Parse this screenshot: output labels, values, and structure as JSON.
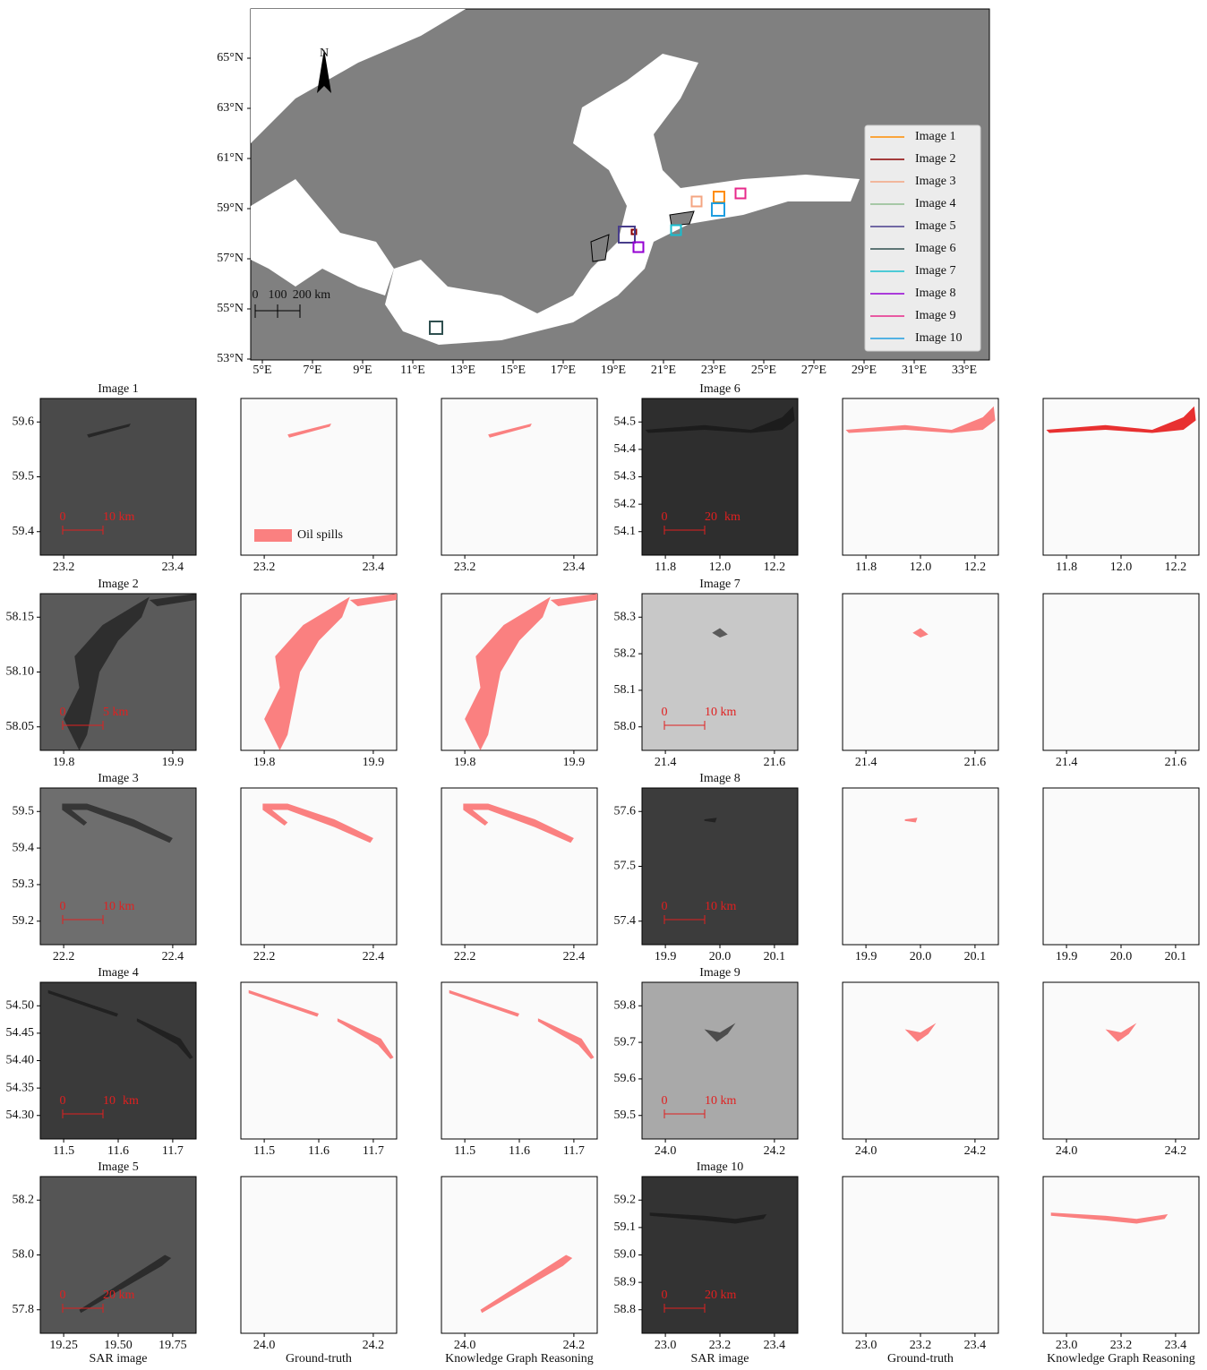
{
  "map": {
    "north": "N",
    "scale_bar": [
      "0",
      "100",
      "200 km"
    ],
    "lat_labels": [
      "65°N",
      "63°N",
      "61°N",
      "59°N",
      "57°N",
      "55°N",
      "53°N"
    ],
    "lon_labels": [
      "5°E",
      "7°E",
      "9°E",
      "11°E",
      "13°E",
      "15°E",
      "17°E",
      "19°E",
      "21°E",
      "23°E",
      "25°E",
      "27°E",
      "29°E",
      "31°E",
      "33°E"
    ],
    "legend": [
      {
        "name": "Image 1",
        "color": "#ff8c00"
      },
      {
        "name": "Image 2",
        "color": "#8b0000"
      },
      {
        "name": "Image 3",
        "color": "#f4a582"
      },
      {
        "name": "Image 4",
        "color": "#8fbc8f"
      },
      {
        "name": "Image 5",
        "color": "#483d8b"
      },
      {
        "name": "Image 6",
        "color": "#2f4f4f"
      },
      {
        "name": "Image 7",
        "color": "#17becf"
      },
      {
        "name": "Image 8",
        "color": "#9400d3"
      },
      {
        "name": "Image 9",
        "color": "#e7298a"
      },
      {
        "name": "Image 10",
        "color": "#1f9ee0"
      }
    ]
  },
  "oil_legend": "Oil spills",
  "column_labels": [
    "SAR image",
    "Ground-truth",
    "Knowledge Graph Reasoning"
  ],
  "images": [
    {
      "title": "Image 1",
      "xticks": [
        "23.2",
        "23.4"
      ],
      "yticks": [
        "59.4",
        "59.5",
        "59.6"
      ],
      "scale": [
        "0",
        "10 km"
      ]
    },
    {
      "title": "Image 2",
      "xticks": [
        "19.8",
        "19.9"
      ],
      "yticks": [
        "58.05",
        "58.10",
        "58.15"
      ],
      "scale": [
        "0",
        "5 km"
      ]
    },
    {
      "title": "Image 3",
      "xticks": [
        "22.2",
        "22.4"
      ],
      "yticks": [
        "59.2",
        "59.3",
        "59.4",
        "59.5"
      ],
      "scale": [
        "0",
        "10 km"
      ]
    },
    {
      "title": "Image 4",
      "xticks": [
        "11.5",
        "11.6",
        "11.7"
      ],
      "yticks": [
        "54.30",
        "54.35",
        "54.40",
        "54.45",
        "54.50"
      ],
      "scale": [
        "0",
        "10",
        "km"
      ]
    },
    {
      "title": "Image 5",
      "xticks": [
        "19.25",
        "19.50",
        "19.75"
      ],
      "mask_xticks": [
        "24.0",
        "24.2"
      ],
      "yticks": [
        "57.8",
        "58.0",
        "58.2"
      ],
      "scale": [
        "0",
        "20 km"
      ]
    },
    {
      "title": "Image 6",
      "xticks": [
        "11.8",
        "12.0",
        "12.2"
      ],
      "yticks": [
        "54.1",
        "54.2",
        "54.3",
        "54.4",
        "54.5"
      ],
      "scale": [
        "0",
        "20",
        "km"
      ]
    },
    {
      "title": "Image 7",
      "xticks": [
        "21.4",
        "21.6"
      ],
      "yticks": [
        "58.0",
        "58.1",
        "58.2",
        "58.3"
      ],
      "scale": [
        "0",
        "10 km"
      ]
    },
    {
      "title": "Image 8",
      "xticks": [
        "19.9",
        "20.0",
        "20.1"
      ],
      "yticks": [
        "57.4",
        "57.5",
        "57.6"
      ],
      "scale": [
        "0",
        "10 km"
      ]
    },
    {
      "title": "Image 9",
      "xticks": [
        "24.0",
        "24.2"
      ],
      "yticks": [
        "59.5",
        "59.6",
        "59.7",
        "59.8"
      ],
      "scale": [
        "0",
        "10 km"
      ]
    },
    {
      "title": "Image 10",
      "xticks": [
        "23.0",
        "23.2",
        "23.4"
      ],
      "yticks": [
        "58.8",
        "58.9",
        "59.0",
        "59.1",
        "59.2"
      ],
      "scale": [
        "0",
        "20 km"
      ]
    }
  ]
}
